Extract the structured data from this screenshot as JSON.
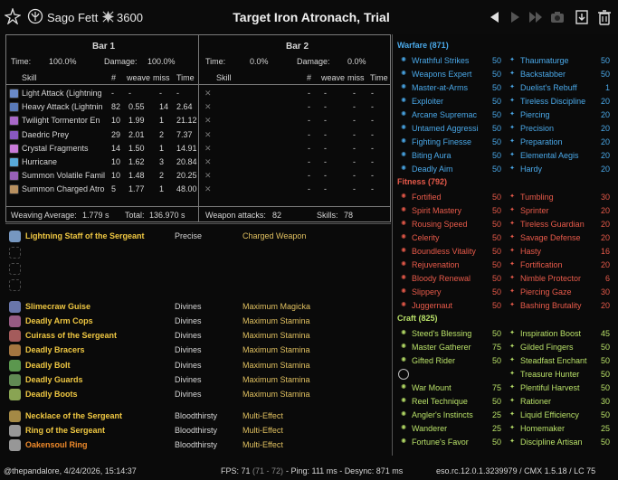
{
  "header": {
    "player_name": "Sago Fett",
    "cp_amount": "3600",
    "title": "Target Iron Atronach, Trial"
  },
  "bar1": {
    "title": "Bar 1",
    "time_label": "Time:",
    "time_value": "100.0%",
    "damage_label": "Damage:",
    "damage_value": "100.0%",
    "col_skill": "Skill",
    "col_count": "#",
    "col_weave": "weave",
    "col_miss": "miss",
    "col_time": "Time",
    "rows": [
      {
        "skill": "Light Attack (Lightning",
        "count": "-",
        "weave": "-",
        "miss": "-",
        "time": "-",
        "color": "#6a8ac8"
      },
      {
        "skill": "Heavy Attack (Lightnin",
        "count": "82",
        "weave": "0.55",
        "miss": "14",
        "time": "2.64",
        "color": "#5a7ab8"
      },
      {
        "skill": "Twilight Tormentor En",
        "count": "10",
        "weave": "1.99",
        "miss": "1",
        "time": "21.12",
        "color": "#a868c8"
      },
      {
        "skill": "Daedric Prey",
        "count": "29",
        "weave": "2.01",
        "miss": "2",
        "time": "7.37",
        "color": "#8858c0"
      },
      {
        "skill": "Crystal Fragments",
        "count": "14",
        "weave": "1.50",
        "miss": "1",
        "time": "14.91",
        "color": "#c87ad8"
      },
      {
        "skill": "Hurricane",
        "count": "10",
        "weave": "1.62",
        "miss": "3",
        "time": "20.84",
        "color": "#58a8d8"
      },
      {
        "skill": "Summon Volatile Famil",
        "count": "10",
        "weave": "1.48",
        "miss": "2",
        "time": "20.25",
        "color": "#9860b8"
      },
      {
        "skill": "Summon Charged Atro",
        "count": "5",
        "weave": "1.77",
        "miss": "1",
        "time": "48.00",
        "color": "#b89060"
      }
    ],
    "weaving_label": "Weaving Average:",
    "weaving_value": "1.779 s",
    "total_label": "Total:",
    "total_value": "136.970 s"
  },
  "bar2": {
    "title": "Bar 2",
    "time_label": "Time:",
    "time_value": "0.0%",
    "damage_label": "Damage:",
    "damage_value": "0.0%",
    "col_skill": "Skill",
    "col_count": "#",
    "col_weave": "weave",
    "col_miss": "miss",
    "col_time": "Time",
    "rows": [
      {
        "count": "-",
        "weave": "-",
        "miss": "-",
        "time": "-"
      },
      {
        "count": "-",
        "weave": "-",
        "miss": "-",
        "time": "-"
      },
      {
        "count": "-",
        "weave": "-",
        "miss": "-",
        "time": "-"
      },
      {
        "count": "-",
        "weave": "-",
        "miss": "-",
        "time": "-"
      },
      {
        "count": "-",
        "weave": "-",
        "miss": "-",
        "time": "-"
      },
      {
        "count": "-",
        "weave": "-",
        "miss": "-",
        "time": "-"
      },
      {
        "count": "-",
        "weave": "-",
        "miss": "-",
        "time": "-"
      },
      {
        "count": "-",
        "weave": "-",
        "miss": "-",
        "time": "-"
      }
    ],
    "weapon_label": "Weapon attacks:",
    "weapon_value": "82",
    "skills_label": "Skills:",
    "skills_value": "78"
  },
  "gear": [
    {
      "name": "Lightning Staff of the Sergeant",
      "trait": "Precise",
      "set": "Charged Weapon",
      "color": "gold",
      "icon": "staff-icon"
    },
    {
      "name": "",
      "trait": "",
      "set": "",
      "color": "gold",
      "icon": "empty-slot-icon"
    },
    {
      "name": "",
      "trait": "",
      "set": "",
      "color": "gold",
      "icon": "empty-slot-icon"
    },
    {
      "name": "",
      "trait": "",
      "set": "",
      "color": "gold",
      "icon": "empty-slot-icon"
    },
    {
      "name": "Slimecraw Guise",
      "trait": "Divines",
      "set": "Maximum Magicka",
      "color": "gold",
      "icon": "helmet-icon"
    },
    {
      "name": "Deadly Arm Cops",
      "trait": "Divines",
      "set": "Maximum Stamina",
      "color": "gold",
      "icon": "shoulder-icon"
    },
    {
      "name": "Cuirass of the Sergeant",
      "trait": "Divines",
      "set": "Maximum Stamina",
      "color": "gold",
      "icon": "chest-icon"
    },
    {
      "name": "Deadly Bracers",
      "trait": "Divines",
      "set": "Maximum Stamina",
      "color": "gold",
      "icon": "gloves-icon"
    },
    {
      "name": "Deadly Bolt",
      "trait": "Divines",
      "set": "Maximum Stamina",
      "color": "gold",
      "icon": "belt-icon"
    },
    {
      "name": "Deadly Guards",
      "trait": "Divines",
      "set": "Maximum Stamina",
      "color": "gold",
      "icon": "legs-icon"
    },
    {
      "name": "Deadly Boots",
      "trait": "Divines",
      "set": "Maximum Stamina",
      "color": "gold",
      "icon": "boots-icon"
    },
    {
      "name": "Necklace of the Sergeant",
      "trait": "Bloodthirsty",
      "set": "Multi-Effect",
      "color": "gold",
      "icon": "necklace-icon"
    },
    {
      "name": "Ring of the Sergeant",
      "trait": "Bloodthirsty",
      "set": "Multi-Effect",
      "color": "gold",
      "icon": "ring-icon"
    },
    {
      "name": "Oakensoul Ring",
      "trait": "Bloodthirsty",
      "set": "Multi-Effect",
      "color": "orange",
      "icon": "ring-icon"
    }
  ],
  "warfare": {
    "title": "Warfare (871)",
    "left": [
      {
        "name": "Wrathful Strikes",
        "value": "50"
      },
      {
        "name": "Weapons Expert",
        "value": "50"
      },
      {
        "name": "Master-at-Arms",
        "value": "50"
      },
      {
        "name": "Exploiter",
        "value": "50"
      },
      {
        "name": "Arcane Supremac",
        "value": "50"
      },
      {
        "name": "Untamed Aggressi",
        "value": "50"
      },
      {
        "name": "Fighting Finesse",
        "value": "50"
      },
      {
        "name": "Biting Aura",
        "value": "50"
      },
      {
        "name": "Deadly Aim",
        "value": "50"
      }
    ],
    "right": [
      {
        "name": "Thaumaturge",
        "value": "50"
      },
      {
        "name": "Backstabber",
        "value": "50"
      },
      {
        "name": "Duelist's Rebuff",
        "value": "1"
      },
      {
        "name": "Tireless Discipline",
        "value": "20"
      },
      {
        "name": "Piercing",
        "value": "20"
      },
      {
        "name": "Precision",
        "value": "20"
      },
      {
        "name": "Preparation",
        "value": "20"
      },
      {
        "name": "Elemental Aegis",
        "value": "20"
      },
      {
        "name": "Hardy",
        "value": "20"
      }
    ]
  },
  "fitness": {
    "title": "Fitness (792)",
    "left": [
      {
        "name": "Fortified",
        "value": "50"
      },
      {
        "name": "Spirit Mastery",
        "value": "50"
      },
      {
        "name": "Rousing Speed",
        "value": "50"
      },
      {
        "name": "Celerity",
        "value": "50"
      },
      {
        "name": "Boundless Vitality",
        "value": "50"
      },
      {
        "name": "Rejuvenation",
        "value": "50"
      },
      {
        "name": "Bloody Renewal",
        "value": "50"
      },
      {
        "name": "Slippery",
        "value": "50"
      },
      {
        "name": "Juggernaut",
        "value": "50"
      }
    ],
    "right": [
      {
        "name": "Tumbling",
        "value": "30"
      },
      {
        "name": "Sprinter",
        "value": "20"
      },
      {
        "name": "Tireless Guardian",
        "value": "20"
      },
      {
        "name": "Savage Defense",
        "value": "20"
      },
      {
        "name": "Hasty",
        "value": "16"
      },
      {
        "name": "Fortification",
        "value": "20"
      },
      {
        "name": "Nimble Protector",
        "value": "6"
      },
      {
        "name": "Piercing Gaze",
        "value": "30"
      },
      {
        "name": "Bashing Brutality",
        "value": "20"
      }
    ]
  },
  "craft": {
    "title": "Craft (825)",
    "left": [
      {
        "name": "Steed's Blessing",
        "value": "50"
      },
      {
        "name": "Master Gatherer",
        "value": "75"
      },
      {
        "name": "Gifted Rider",
        "value": "50"
      },
      {
        "name": "",
        "value": ""
      },
      {
        "name": "War Mount",
        "value": "75"
      },
      {
        "name": "Reel Technique",
        "value": "50"
      },
      {
        "name": "Angler's Instincts",
        "value": "25"
      },
      {
        "name": "Wanderer",
        "value": "25"
      },
      {
        "name": "Fortune's Favor",
        "value": "50"
      }
    ],
    "right": [
      {
        "name": "Inspiration Boost",
        "value": "45"
      },
      {
        "name": "Gilded Fingers",
        "value": "50"
      },
      {
        "name": "Steadfast Enchant",
        "value": "50"
      },
      {
        "name": "Treasure Hunter",
        "value": "50"
      },
      {
        "name": "Plentiful Harvest",
        "value": "50"
      },
      {
        "name": "Rationer",
        "value": "30"
      },
      {
        "name": "Liquid Efficiency",
        "value": "50"
      },
      {
        "name": "Homemaker",
        "value": "25"
      },
      {
        "name": "Discipline Artisan",
        "value": "50"
      }
    ]
  },
  "footer": {
    "author": "@thepandalore, 4/24/2026, 15:14:37",
    "fps": "FPS: 71",
    "fps_range": "(71 - 72)",
    "ping": "- Ping: 111 ms - Desync: 871 ms",
    "version": "eso.rc.12.0.1.3239979 / CMX 1.5.18 / LC 75"
  },
  "colors": {
    "gear_gold": "#f0c842",
    "gear_orange": "#f08a2a",
    "warfare": "#4aa8e8",
    "fitness": "#e85a4a",
    "craft": "#b8e068"
  }
}
